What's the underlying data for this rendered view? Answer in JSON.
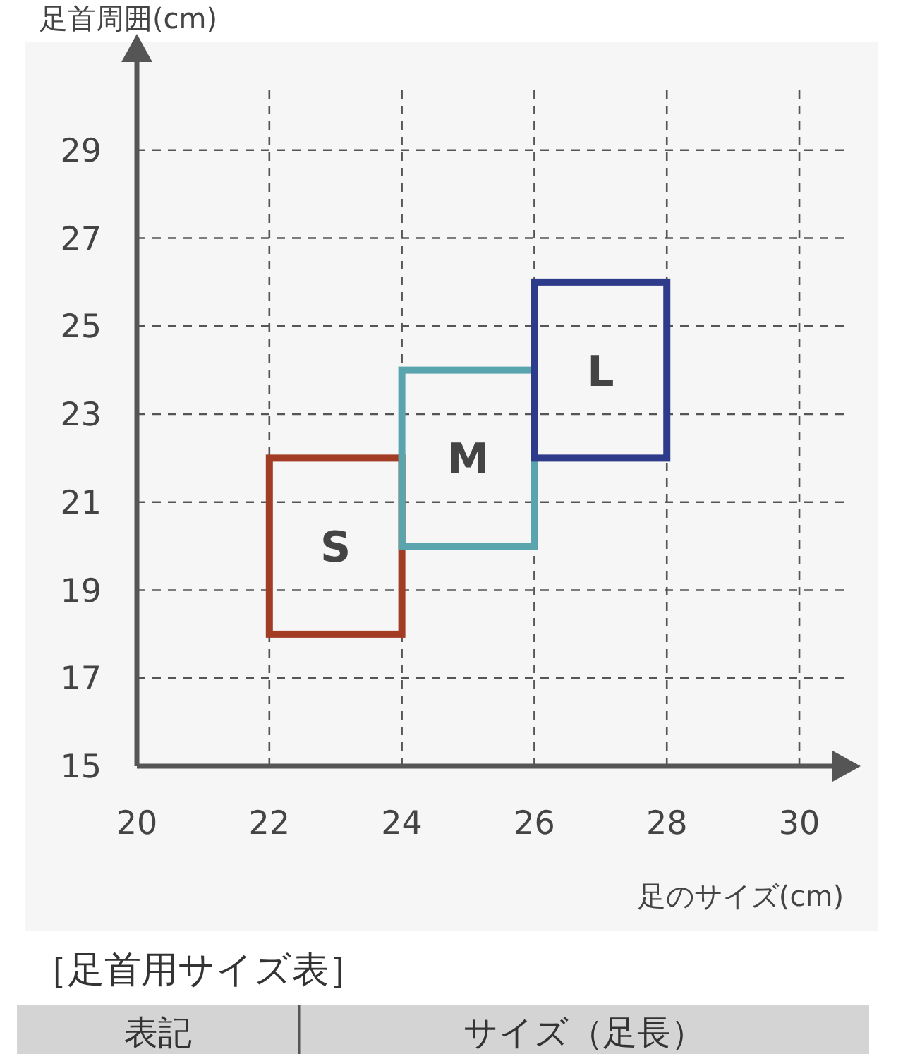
{
  "chart_data": {
    "type": "bar",
    "ylabel": "足首周囲(cm)",
    "xlabel": "足のサイズ(cm)",
    "xlim": [
      20,
      30.5
    ],
    "ylim": [
      15,
      31
    ],
    "xticks": [
      20,
      22,
      24,
      26,
      28,
      30
    ],
    "yticks": [
      15,
      17,
      19,
      21,
      23,
      25,
      27,
      29
    ],
    "grid": true,
    "series": [
      {
        "name": "S",
        "color": "#a33c24",
        "x": [
          23
        ],
        "base": [
          18
        ],
        "values": [
          4
        ]
      },
      {
        "name": "M",
        "color": "#5aa5ad",
        "x": [
          25
        ],
        "base": [
          20
        ],
        "values": [
          4
        ]
      },
      {
        "name": "L",
        "color": "#2e3a8a",
        "x": [
          27
        ],
        "base": [
          22
        ],
        "values": [
          4
        ]
      }
    ],
    "annotations": [
      "［足首用サイズ表］",
      "表記",
      "サイズ（足長）"
    ]
  }
}
